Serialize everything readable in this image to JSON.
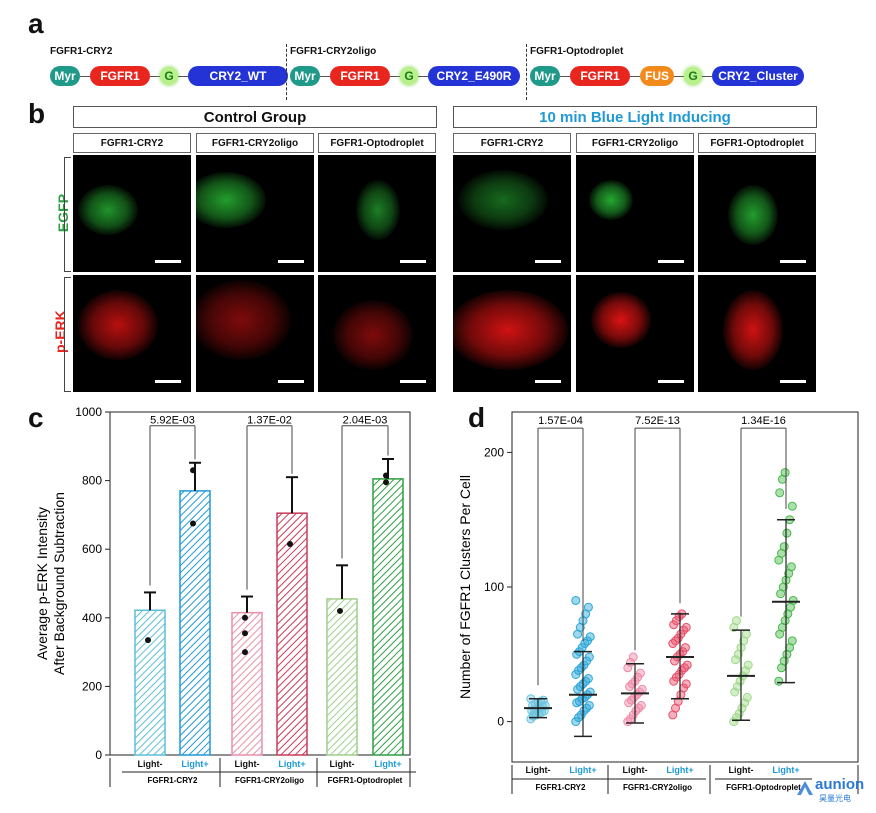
{
  "panel_labels": {
    "a": "a",
    "b": "b",
    "c": "c",
    "d": "d"
  },
  "constructs": [
    {
      "title": "FGFR1-CRY2",
      "parts": [
        {
          "label": "Myr",
          "color": "#1f9a8a"
        },
        {
          "label": "FGFR1",
          "color": "#e8261d"
        },
        {
          "label": "G",
          "color": "#b8f08a"
        },
        {
          "label": "CRY2_WT",
          "color": "#2333d6"
        }
      ]
    },
    {
      "title": "FGFR1-CRY2oligo",
      "parts": [
        {
          "label": "Myr",
          "color": "#1f9a8a"
        },
        {
          "label": "FGFR1",
          "color": "#e8261d"
        },
        {
          "label": "G",
          "color": "#b8f08a"
        },
        {
          "label": "CRY2_E490R",
          "color": "#2333d6"
        }
      ]
    },
    {
      "title": "FGFR1-Optodroplet",
      "parts": [
        {
          "label": "Myr",
          "color": "#1f9a8a"
        },
        {
          "label": "FGFR1",
          "color": "#e8261d"
        },
        {
          "label": "FUS",
          "color": "#f28a1b"
        },
        {
          "label": "G",
          "color": "#b8f08a"
        },
        {
          "label": "CRY2_Cluster",
          "color": "#2333d6"
        }
      ]
    }
  ],
  "microscopy": {
    "groups": [
      {
        "label": "Control Group",
        "color": "#111111"
      },
      {
        "label": "10 min Blue Light Inducing",
        "color": "#1f9ad6"
      }
    ],
    "columns": [
      "FGFR1-CRY2",
      "FGFR1-CRY2oligo",
      "FGFR1-Optodroplet",
      "FGFR1-CRY2",
      "FGFR1-CRY2oligo",
      "FGFR1-Optodroplet"
    ],
    "rows": [
      {
        "label": "EGFP",
        "color": "#2ea043"
      },
      {
        "label": "p-ERK",
        "color": "#e8261d"
      }
    ]
  },
  "chart_data": [
    {
      "type": "bar",
      "ylabel": "Average p-ERK Intensity\nAfter Background Subtraction",
      "ylabel_lines": [
        "Average p-ERK Intensity",
        "After Background Subtraction"
      ],
      "ylim": [
        0,
        1000
      ],
      "yticks": [
        "0",
        "200",
        "400",
        "600",
        "800",
        "1000"
      ],
      "ytick_values": [
        0,
        200,
        400,
        600,
        800,
        1000
      ],
      "categories": [
        "Light-",
        "Light+",
        "Light-",
        "Light+",
        "Light-",
        "Light+"
      ],
      "category_colors": [
        "#111111",
        "#1f9ad6",
        "#111111",
        "#1f9ad6",
        "#111111",
        "#1f9ad6"
      ],
      "groups": [
        "FGFR1-CRY2",
        "FGFR1-CRY2oligo",
        "FGFR1-Optodroplet"
      ],
      "values": [
        422,
        770,
        415,
        705,
        455,
        805
      ],
      "errors": [
        52,
        82,
        47,
        105,
        98,
        58
      ],
      "points": [
        [
          335
        ],
        [
          675,
          830
        ],
        [
          300,
          355,
          400
        ],
        [
          615
        ],
        [
          420
        ],
        [
          795,
          815
        ]
      ],
      "fill_colors": [
        "#5bbfd6",
        "#1f9ad6",
        "#e891a8",
        "#c83a5a",
        "#9fcf8a",
        "#2ea043"
      ],
      "pvalues": [
        "5.92E-03",
        "1.37E-02",
        "2.04E-03"
      ]
    },
    {
      "type": "scatter",
      "ylabel": "Number of FGFR1 Clusters Per Cell",
      "ylim": [
        -30,
        230
      ],
      "yticks": [
        "0",
        "100",
        "200"
      ],
      "ytick_values": [
        0,
        100,
        200
      ],
      "categories": [
        "Light-",
        "Light+",
        "Light-",
        "Light+",
        "Light-",
        "Light+"
      ],
      "category_colors": [
        "#111111",
        "#1f9ad6",
        "#111111",
        "#1f9ad6",
        "#111111",
        "#1f9ad6"
      ],
      "groups": [
        "FGFR1-CRY2",
        "FGFR1-CRY2oligo",
        "FGFR1-Optodroplet"
      ],
      "means": [
        10,
        20,
        21,
        48,
        34,
        89
      ],
      "sd_upper": [
        17,
        52,
        43,
        80,
        68,
        150
      ],
      "sd_lower": [
        3,
        -11,
        -1,
        17,
        1,
        29
      ],
      "point_colors": [
        "#6ec6e0",
        "#2aa6d8",
        "#f08aa8",
        "#e8506a",
        "#9fd98a",
        "#48b84a"
      ],
      "points": [
        [
          2,
          4,
          5,
          6,
          7,
          8,
          8,
          9,
          10,
          10,
          11,
          12,
          12,
          13,
          14,
          15,
          16,
          17,
          5,
          9
        ],
        [
          0,
          3,
          5,
          8,
          10,
          12,
          14,
          15,
          17,
          18,
          20,
          22,
          24,
          26,
          28,
          30,
          32,
          35,
          38,
          40,
          42,
          45,
          48,
          50,
          52,
          55,
          58,
          60,
          63,
          65,
          70,
          75,
          80,
          85,
          90
        ],
        [
          0,
          2,
          5,
          8,
          10,
          12,
          14,
          16,
          18,
          20,
          22,
          24,
          26,
          28,
          30,
          33,
          36,
          40,
          44,
          48
        ],
        [
          5,
          10,
          15,
          20,
          25,
          28,
          30,
          33,
          35,
          38,
          40,
          42,
          45,
          48,
          50,
          52,
          55,
          58,
          60,
          62,
          65,
          68,
          70,
          72,
          75,
          78,
          80
        ],
        [
          0,
          3,
          6,
          10,
          14,
          18,
          22,
          26,
          30,
          34,
          38,
          42,
          46,
          50,
          55,
          60,
          65,
          70,
          75
        ],
        [
          30,
          40,
          45,
          50,
          55,
          60,
          65,
          70,
          75,
          80,
          85,
          90,
          95,
          100,
          105,
          110,
          115,
          120,
          125,
          130,
          140,
          150,
          160,
          170,
          180,
          185
        ]
      ],
      "pvalues": [
        "1.57E-04",
        "7.52E-13",
        "1.34E-16"
      ]
    }
  ],
  "watermark": {
    "text_en": "aunion",
    "text_cn": "昊量光电"
  }
}
